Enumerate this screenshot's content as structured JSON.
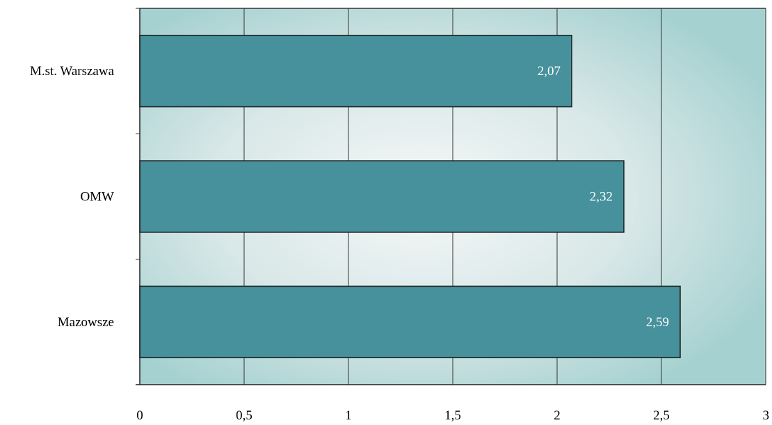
{
  "chart_data": {
    "type": "bar",
    "orientation": "horizontal",
    "categories": [
      "M.st. Warszawa",
      "OMW",
      "Mazowsze"
    ],
    "values": [
      2.07,
      2.32,
      2.59
    ],
    "value_labels": [
      "2,07",
      "2,32",
      "2,59"
    ],
    "x_ticks": [
      "0",
      "0,5",
      "1",
      "1,5",
      "2",
      "2,5",
      "3"
    ],
    "xlim": [
      0,
      3
    ],
    "title": "",
    "xlabel": "",
    "ylabel": "",
    "grid": "vertical",
    "legend": "none",
    "colors": {
      "bar": "#46919b",
      "bar_border": "#1a1a1a",
      "plot_bg_edge": "#a6d1d1",
      "plot_bg_center": "#f6f8f8",
      "grid": "#333333"
    }
  }
}
